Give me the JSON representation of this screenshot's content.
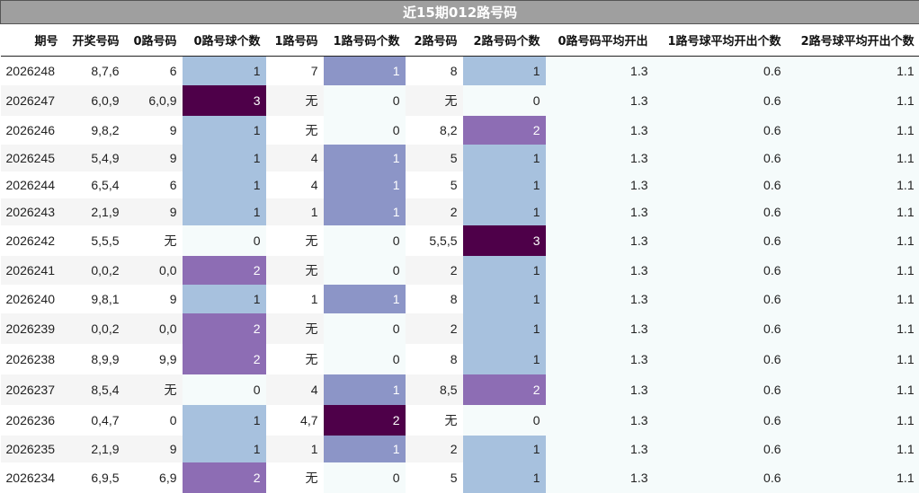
{
  "title": "近15期012路号码",
  "columns": [
    "期号",
    "开奖号码",
    "0路号码",
    "0路号球个数",
    "1路号码",
    "1路号码个数",
    "2路号码",
    "2路号码个数",
    "0路号码平均开出",
    "1路号球平均开出个数",
    "2路号球平均开出个数"
  ],
  "rows": [
    [
      "2026248",
      "8,7,6",
      "6",
      "1",
      "7",
      "1",
      "8",
      "1",
      "1.3",
      "0.6",
      "1.1"
    ],
    [
      "2026247",
      "6,0,9",
      "6,0,9",
      "3",
      "无",
      "0",
      "无",
      "0",
      "1.3",
      "0.6",
      "1.1"
    ],
    [
      "2026246",
      "9,8,2",
      "9",
      "1",
      "无",
      "0",
      "8,2",
      "2",
      "1.3",
      "0.6",
      "1.1"
    ],
    [
      "2026245",
      "5,4,9",
      "9",
      "1",
      "4",
      "1",
      "5",
      "1",
      "1.3",
      "0.6",
      "1.1"
    ],
    [
      "2026244",
      "6,5,4",
      "6",
      "1",
      "4",
      "1",
      "5",
      "1",
      "1.3",
      "0.6",
      "1.1"
    ],
    [
      "2026243",
      "2,1,9",
      "9",
      "1",
      "1",
      "1",
      "2",
      "1",
      "1.3",
      "0.6",
      "1.1"
    ],
    [
      "2026242",
      "5,5,5",
      "无",
      "0",
      "无",
      "0",
      "5,5,5",
      "3",
      "1.3",
      "0.6",
      "1.1"
    ],
    [
      "2026241",
      "0,0,2",
      "0,0",
      "2",
      "无",
      "0",
      "2",
      "1",
      "1.3",
      "0.6",
      "1.1"
    ],
    [
      "2026240",
      "9,8,1",
      "9",
      "1",
      "1",
      "1",
      "8",
      "1",
      "1.3",
      "0.6",
      "1.1"
    ],
    [
      "2026239",
      "0,0,2",
      "0,0",
      "2",
      "无",
      "0",
      "2",
      "1",
      "1.3",
      "0.6",
      "1.1"
    ],
    [
      "2026238",
      "8,9,9",
      "9,9",
      "2",
      "无",
      "0",
      "8",
      "1",
      "1.3",
      "0.6",
      "1.1"
    ],
    [
      "2026237",
      "8,5,4",
      "无",
      "0",
      "4",
      "1",
      "8,5",
      "2",
      "1.3",
      "0.6",
      "1.1"
    ],
    [
      "2026236",
      "0,4,7",
      "0",
      "1",
      "4,7",
      "2",
      "无",
      "0",
      "1.3",
      "0.6",
      "1.1"
    ],
    [
      "2026235",
      "2,1,9",
      "9",
      "1",
      "1",
      "1",
      "2",
      "1",
      "1.3",
      "0.6",
      "1.1"
    ],
    [
      "2026234",
      "6,9,5",
      "6,9",
      "2",
      "无",
      "0",
      "5",
      "1",
      "1.3",
      "0.6",
      "1.1"
    ]
  ],
  "colors": {
    "title_bg": "#9f9f9f",
    "count_1": "#a7c1de",
    "count_1_mid": "#8c95c7",
    "count_2": "#8d6db4",
    "count_3": "#4e0049",
    "count_0": "#f5fbfb",
    "row_alt": "#f5f5f5"
  }
}
